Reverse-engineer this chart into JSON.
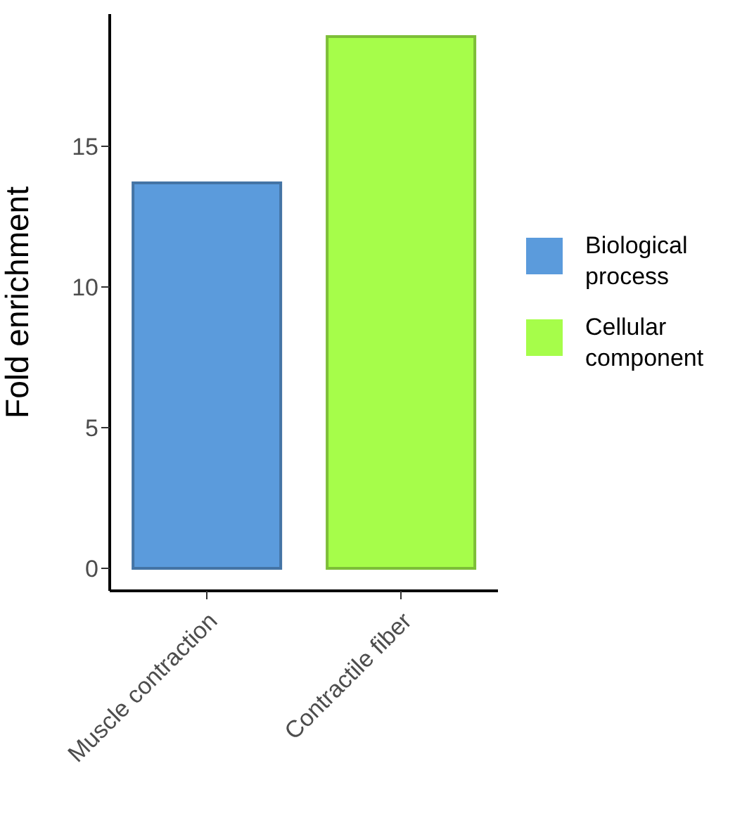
{
  "chart_data": {
    "type": "bar",
    "ylabel": "Fold enrichment",
    "categories": [
      "Muscle contraction",
      "Contractile fiber"
    ],
    "series": [
      {
        "name": "Biological process",
        "color": "#5b9bdc",
        "values": [
          13.7,
          null
        ]
      },
      {
        "name": "Cellular component",
        "color": "#a6fd4a",
        "values": [
          null,
          18.9
        ]
      }
    ],
    "ylim": [
      -0.8,
      19.7
    ],
    "yticks": [
      0,
      5,
      10,
      15
    ],
    "grid": false,
    "legend": "right"
  }
}
